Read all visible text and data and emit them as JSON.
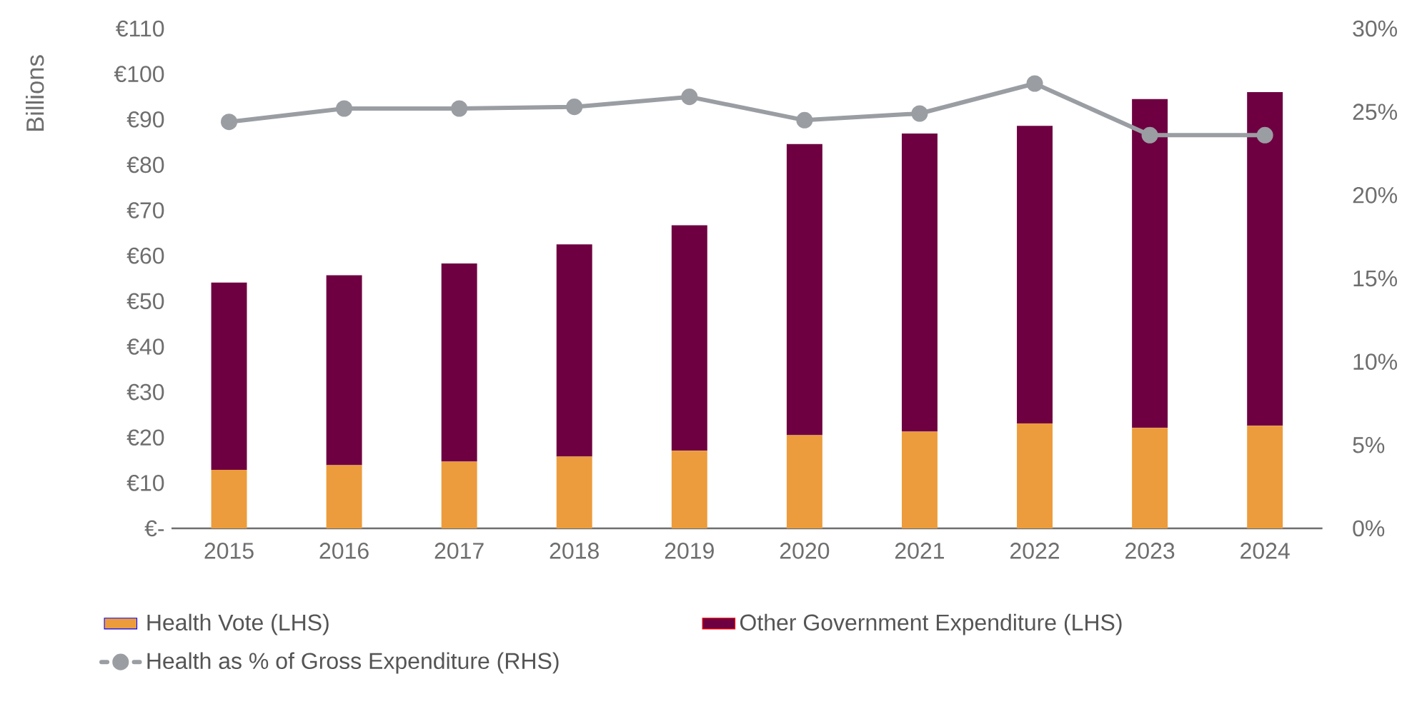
{
  "chart_data": {
    "type": "bar",
    "stacked": true,
    "ylabel": "Billions",
    "categories": [
      "2015",
      "2016",
      "2017",
      "2018",
      "2019",
      "2020",
      "2021",
      "2022",
      "2023",
      "2024"
    ],
    "series": [
      {
        "name": "Health Vote (LHS)",
        "color": "#ec9c3c",
        "values": [
          12.9,
          13.9,
          14.7,
          15.8,
          17.1,
          20.5,
          21.3,
          23.1,
          22.1,
          22.6
        ]
      },
      {
        "name": "Other Government Expenditure (LHS)",
        "color": "#6e0041",
        "values": [
          41.2,
          41.8,
          43.6,
          46.7,
          49.6,
          64.1,
          65.6,
          65.5,
          72.4,
          73.4
        ]
      },
      {
        "name": "Health as % of Gross Expenditure (RHS)",
        "color": "#9a9ea3",
        "type": "line",
        "axis": "y2",
        "values": [
          24.4,
          25.2,
          25.2,
          25.3,
          25.9,
          24.5,
          24.9,
          26.7,
          23.6,
          23.6
        ]
      }
    ],
    "ylim": [
      0,
      110
    ],
    "yticks": [
      {
        "value": 0,
        "label": "€-"
      },
      {
        "value": 10,
        "label": "€10"
      },
      {
        "value": 20,
        "label": "€20"
      },
      {
        "value": 30,
        "label": "€30"
      },
      {
        "value": 40,
        "label": "€40"
      },
      {
        "value": 50,
        "label": "€50"
      },
      {
        "value": 60,
        "label": "€60"
      },
      {
        "value": 70,
        "label": "€70"
      },
      {
        "value": 80,
        "label": "€80"
      },
      {
        "value": 90,
        "label": "€90"
      },
      {
        "value": 100,
        "label": "€100"
      },
      {
        "value": 110,
        "label": "€110"
      }
    ],
    "y2lim": [
      0,
      30
    ],
    "y2ticks": [
      {
        "value": 0,
        "label": "0%"
      },
      {
        "value": 5,
        "label": "5%"
      },
      {
        "value": 10,
        "label": "10%"
      },
      {
        "value": 15,
        "label": "15%"
      },
      {
        "value": 20,
        "label": "20%"
      },
      {
        "value": 25,
        "label": "25%"
      },
      {
        "value": 30,
        "label": "30%"
      }
    ],
    "legend": "bottom",
    "marker": "circle"
  }
}
